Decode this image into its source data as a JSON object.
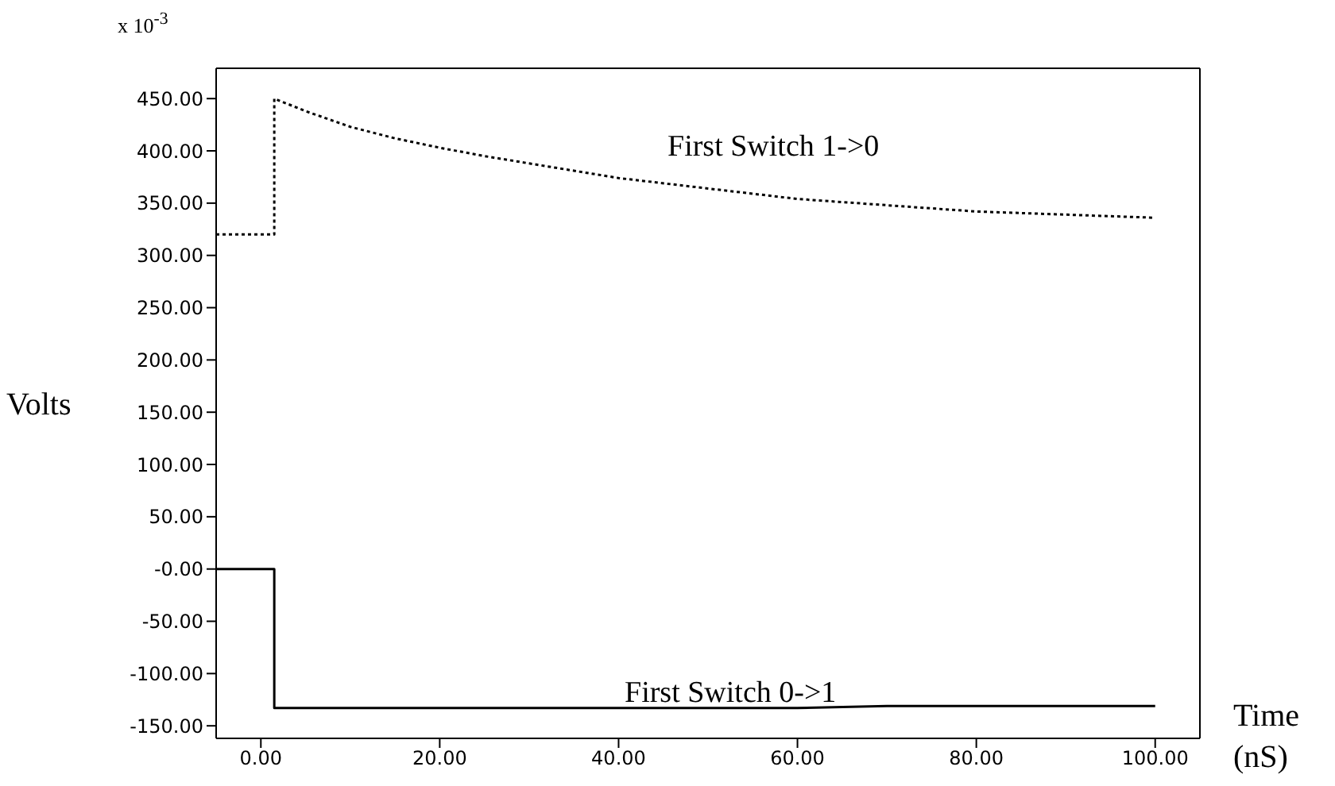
{
  "chart_data": {
    "type": "line",
    "ylabel": "Volts",
    "xlabel": "Time (nS)",
    "annotations": [
      "x 10$^{-3}$",
      "First Switch 1->0",
      "First Switch 0->1"
    ],
    "xlim": [
      -5,
      105
    ],
    "ylim": [
      -162,
      479
    ],
    "xticks": [
      {
        "value": 0,
        "label": "0.00"
      },
      {
        "value": 20,
        "label": "20.00"
      },
      {
        "value": 40,
        "label": "40.00"
      },
      {
        "value": 60,
        "label": "60.00"
      },
      {
        "value": 80,
        "label": "80.00"
      },
      {
        "value": 100,
        "label": "100.00"
      }
    ],
    "yticks": [
      {
        "value": -150,
        "label": "-150.00"
      },
      {
        "value": -100,
        "label": "-100.00"
      },
      {
        "value": -50,
        "label": "-50.00"
      },
      {
        "value": 0,
        "label": "-0.00"
      },
      {
        "value": 50,
        "label": "50.00"
      },
      {
        "value": 100,
        "label": "100.00"
      },
      {
        "value": 150,
        "label": "150.00"
      },
      {
        "value": 200,
        "label": "200.00"
      },
      {
        "value": 250,
        "label": "250.00"
      },
      {
        "value": 300,
        "label": "300.00"
      },
      {
        "value": 350,
        "label": "350.00"
      },
      {
        "value": 400,
        "label": "400.00"
      },
      {
        "value": 450,
        "label": "450.00"
      }
    ],
    "marker": "none",
    "series": [
      {
        "color": "#000000",
        "line_style": "dotted",
        "x": [
          -5,
          1.5,
          1.5,
          5,
          10,
          15,
          20,
          25,
          30,
          40,
          50,
          60,
          70,
          80,
          90,
          100
        ],
        "values": [
          320,
          320,
          450,
          438,
          423,
          412,
          403,
          395,
          388,
          374,
          364,
          354,
          348,
          342,
          339,
          336
        ]
      },
      {
        "color": "#000000",
        "line_style": "solid",
        "x": [
          -5,
          1.5,
          1.5,
          2,
          20,
          40,
          60,
          70,
          80,
          100
        ],
        "values": [
          0,
          0,
          -133,
          -133,
          -133,
          -133,
          -133,
          -131,
          -131,
          -131
        ]
      }
    ]
  }
}
